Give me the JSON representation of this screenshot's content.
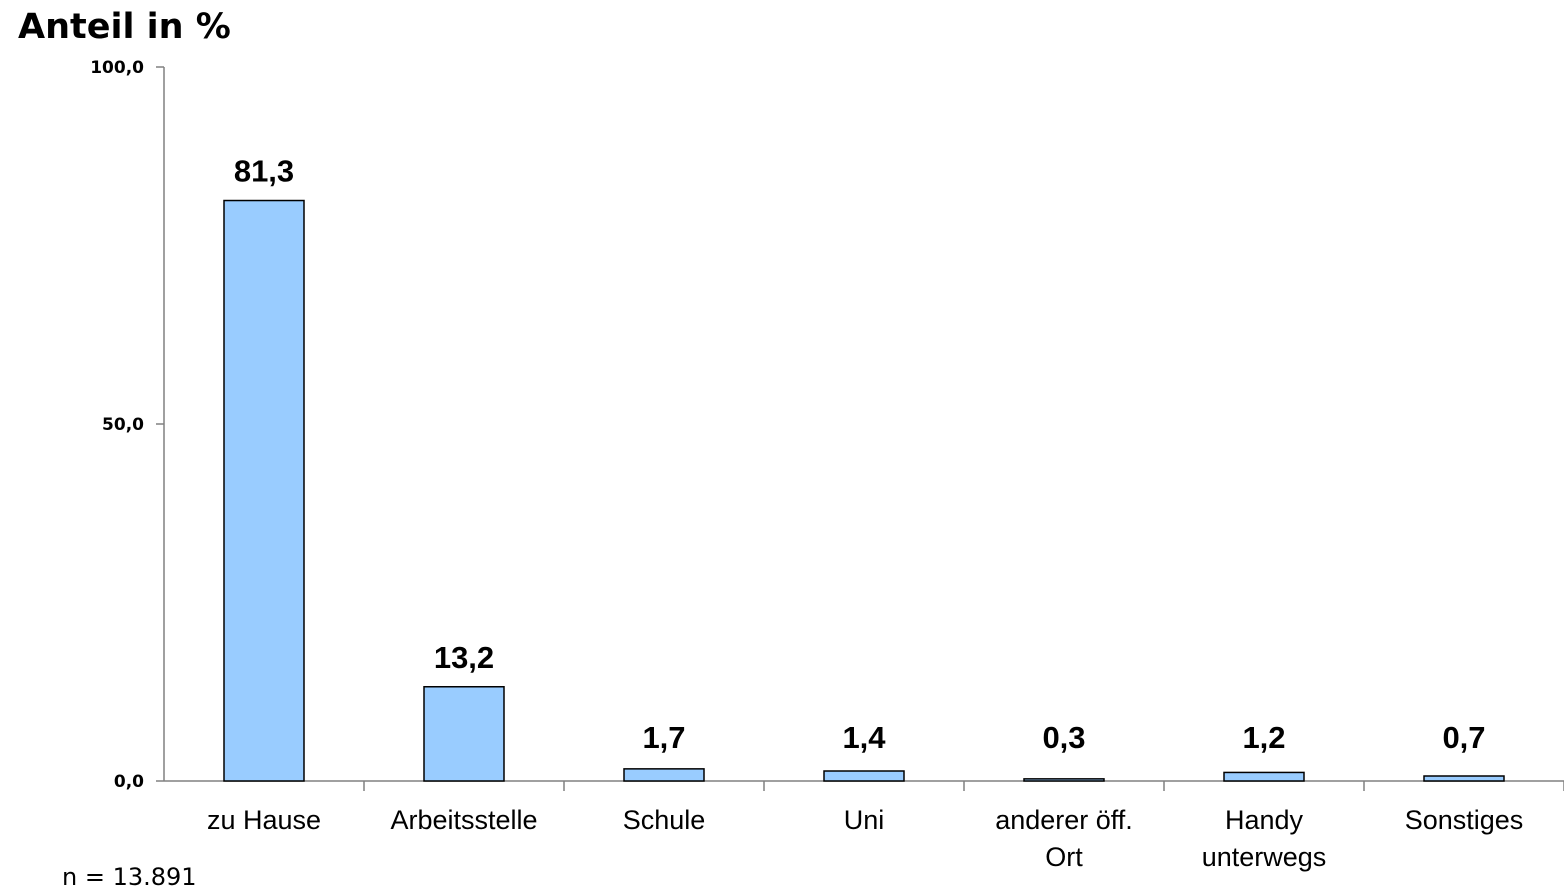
{
  "chart_data": {
    "type": "bar",
    "title": "Anteil in %",
    "categories": [
      [
        "zu Hause"
      ],
      [
        "Arbeitsstelle"
      ],
      [
        "Schule"
      ],
      [
        "Uni"
      ],
      [
        "anderer öff.",
        "Ort"
      ],
      [
        "Handy",
        "unterwegs"
      ],
      [
        "Sonstiges"
      ]
    ],
    "values": [
      81.3,
      13.2,
      1.7,
      1.4,
      0.3,
      1.2,
      0.7
    ],
    "value_labels": [
      "81,3",
      "13,2",
      "1,7",
      "1,4",
      "0,3",
      "1,2",
      "0,7"
    ],
    "ylim": [
      0,
      100
    ],
    "yticks": [
      0,
      50,
      100
    ],
    "ytick_labels": [
      "0,0",
      "50,0",
      "100,0"
    ],
    "grid": false,
    "legend": "none",
    "bar_color": "#99ccff",
    "bar_edge_color": "#000000",
    "note": "n = 13.891"
  }
}
